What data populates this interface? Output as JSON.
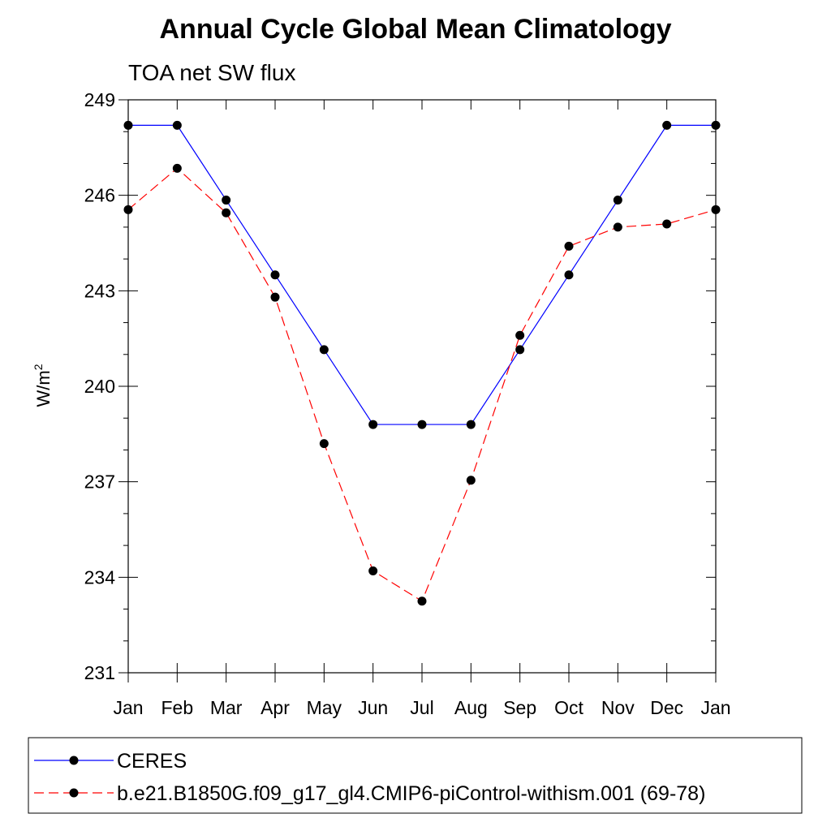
{
  "chart_data": {
    "type": "line",
    "title": "Annual Cycle Global Mean Climatology",
    "subtitle": "TOA net SW flux",
    "ylabel_base": "W/m",
    "ylabel_sup": "2",
    "xlabel": "",
    "categories": [
      "Jan",
      "Feb",
      "Mar",
      "Apr",
      "May",
      "Jun",
      "Jul",
      "Aug",
      "Sep",
      "Oct",
      "Nov",
      "Dec",
      "Jan"
    ],
    "ylim": [
      231,
      249
    ],
    "yticks": [
      "231",
      "234",
      "237",
      "240",
      "243",
      "246",
      "249"
    ],
    "series": [
      {
        "name": "CERES",
        "color": "#0000ff",
        "dash": "solid",
        "values": [
          248.2,
          248.2,
          245.85,
          243.5,
          241.15,
          238.8,
          238.8,
          238.8,
          241.15,
          243.5,
          245.85,
          248.2,
          248.2
        ]
      },
      {
        "name": "b.e21.B1850G.f09_g17_gl4.CMIP6-piControl-withism.001 (69-78)",
        "color": "#ff0000",
        "dash": "dashed",
        "values": [
          245.55,
          246.85,
          245.45,
          242.8,
          238.2,
          234.2,
          233.25,
          237.05,
          241.6,
          244.4,
          245.0,
          245.1,
          245.55
        ]
      }
    ],
    "legend_position": "bottom"
  }
}
